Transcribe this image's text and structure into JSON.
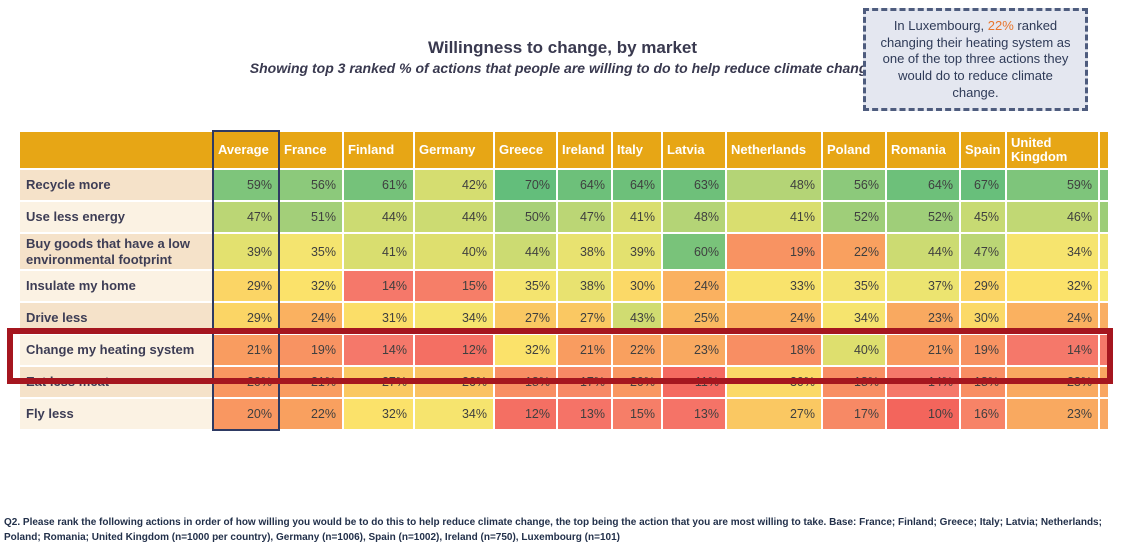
{
  "header": {
    "title": "Willingness to change, by market",
    "subtitle": "Showing top 3 ranked % of actions that people are willing to do to help reduce climate change"
  },
  "callout": {
    "prefix": "In Luxembourg, ",
    "highlight": "22%",
    "suffix": " ranked changing their heating system as one of the top three actions they would do to reduce climate change.",
    "highlight_color": "#E8762C",
    "border_color": "#4E5C7E",
    "background_color": "#E4E7F0"
  },
  "chart_data": {
    "type": "heatmap",
    "title": "Willingness to change, by market",
    "subtitle": "Showing top 3 ranked % of actions that people are willing to do to help reduce climate change",
    "unit": "%",
    "columns": [
      "Average",
      "France",
      "Finland",
      "Germany",
      "Greece",
      "Ireland",
      "Italy",
      "Latvia",
      "Netherlands",
      "Poland",
      "Romania",
      "Spain",
      "United Kingdom"
    ],
    "rows": [
      {
        "label": "Recycle more",
        "values": [
          59,
          56,
          61,
          42,
          70,
          64,
          64,
          63,
          48,
          56,
          64,
          67,
          59
        ]
      },
      {
        "label": "Use less energy",
        "values": [
          47,
          51,
          44,
          44,
          50,
          47,
          41,
          48,
          41,
          52,
          52,
          45,
          46
        ]
      },
      {
        "label": "Buy goods that have a low environmental footprint",
        "values": [
          39,
          35,
          41,
          40,
          44,
          38,
          39,
          60,
          19,
          22,
          44,
          47,
          34
        ]
      },
      {
        "label": "Insulate my home",
        "values": [
          29,
          32,
          14,
          15,
          35,
          38,
          30,
          24,
          33,
          35,
          37,
          29,
          32
        ]
      },
      {
        "label": "Drive less",
        "values": [
          29,
          24,
          31,
          34,
          27,
          27,
          43,
          25,
          24,
          34,
          23,
          30,
          24
        ]
      },
      {
        "label": "Change my heating system",
        "values": [
          21,
          19,
          14,
          12,
          32,
          21,
          22,
          23,
          18,
          40,
          21,
          19,
          14
        ],
        "highlighted": true
      },
      {
        "label": "Eat less meat",
        "values": [
          20,
          21,
          27,
          26,
          18,
          17,
          20,
          11,
          30,
          18,
          14,
          18,
          23
        ]
      },
      {
        "label": "Fly less",
        "values": [
          20,
          22,
          32,
          34,
          12,
          13,
          15,
          13,
          27,
          17,
          10,
          16,
          23
        ]
      }
    ],
    "highlighted_row": "Change my heating system",
    "highlighted_column": "Average",
    "legend_position": "none",
    "grid": false,
    "color_scale": {
      "stops": [
        [
          10,
          "#F3655C"
        ],
        [
          14,
          "#F5786A"
        ],
        [
          18,
          "#F88E63"
        ],
        [
          22,
          "#F9A05F"
        ],
        [
          26,
          "#FAC261"
        ],
        [
          29,
          "#FBD565"
        ],
        [
          32,
          "#FBE26A"
        ],
        [
          36,
          "#F1E571"
        ],
        [
          40,
          "#DEDF6E"
        ],
        [
          45,
          "#C7DA73"
        ],
        [
          50,
          "#A8D078"
        ],
        [
          56,
          "#8CC97B"
        ],
        [
          62,
          "#70C07A"
        ],
        [
          70,
          "#63BE7B"
        ]
      ]
    },
    "style": {
      "header_background": "#E7A615",
      "header_text_color": "#FFFFFF",
      "row_label_background_odd": "#F5E2C9",
      "row_label_background_even": "#FBF2E3",
      "highlight_row_border_color": "#A5161F",
      "highlight_column_border_color": "#2E3A63",
      "cutoff_column_colors": [
        "#7EC47B",
        "#9CCD77",
        "#F1E571",
        "#F8E975",
        "#F9AE63",
        "#F5786A",
        "#F9A662",
        "#F9A863"
      ]
    }
  },
  "footnote": "Q2. Please rank the following actions in order of how willing you would be to do this to help reduce climate change, the top being the action that you are most willing to take. Base: France; Finland; Greece; Italy; Latvia; Netherlands; Poland; Romania; United Kingdom (n=1000 per country), Germany (n=1006), Spain (n=1002), Ireland (n=750), Luxembourg (n=101)"
}
